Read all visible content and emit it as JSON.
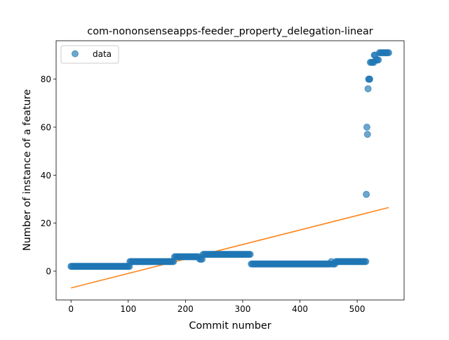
{
  "chart_data": {
    "type": "scatter",
    "title": "com-nononsenseapps-feeder_property_delegation-linear",
    "xlabel": "Commit number",
    "ylabel": "Number of instance of a feature",
    "xlim": [
      -26,
      582
    ],
    "ylim": [
      -12,
      96
    ],
    "xticks": [
      0,
      100,
      200,
      300,
      400,
      500
    ],
    "yticks": [
      0,
      20,
      40,
      60,
      80
    ],
    "grid": false,
    "legend": {
      "position": "top-left",
      "entries": [
        "data"
      ]
    },
    "colors": {
      "points": "#1f77b4",
      "fit": "#ff7f0e"
    },
    "segments": [
      {
        "x_start": 0,
        "x_end": 102,
        "step": 2,
        "y": 2
      },
      {
        "x_start": 103,
        "x_end": 180,
        "step": 2,
        "y": 4
      },
      {
        "x_start": 181,
        "x_end": 224,
        "step": 2,
        "y": 6
      },
      {
        "x_start": 225,
        "x_end": 230,
        "step": 2,
        "y": 5
      },
      {
        "x_start": 231,
        "x_end": 314,
        "step": 2,
        "y": 7
      },
      {
        "x_start": 315,
        "x_end": 454,
        "step": 2,
        "y": 3
      },
      {
        "x_start": 455,
        "x_end": 456,
        "step": 2,
        "y": 4
      },
      {
        "x_start": 457,
        "x_end": 462,
        "step": 2,
        "y": 3
      },
      {
        "x_start": 463,
        "x_end": 515,
        "step": 2,
        "y": 4
      }
    ],
    "points": [
      {
        "x": 516,
        "y": 32
      },
      {
        "x": 517,
        "y": 60
      },
      {
        "x": 518,
        "y": 57
      },
      {
        "x": 519,
        "y": 76
      },
      {
        "x": 520,
        "y": 80
      },
      {
        "x": 521,
        "y": 80
      },
      {
        "x": 522,
        "y": 80
      },
      {
        "x": 523,
        "y": 87
      },
      {
        "x": 525,
        "y": 87
      },
      {
        "x": 527,
        "y": 87
      },
      {
        "x": 529,
        "y": 87
      },
      {
        "x": 530,
        "y": 90
      },
      {
        "x": 531,
        "y": 90
      },
      {
        "x": 533,
        "y": 88
      },
      {
        "x": 535,
        "y": 88
      },
      {
        "x": 537,
        "y": 88
      },
      {
        "x": 539,
        "y": 91
      },
      {
        "x": 541,
        "y": 91
      },
      {
        "x": 543,
        "y": 91
      },
      {
        "x": 545,
        "y": 91
      },
      {
        "x": 547,
        "y": 91
      },
      {
        "x": 549,
        "y": 91
      },
      {
        "x": 551,
        "y": 91
      },
      {
        "x": 553,
        "y": 91
      },
      {
        "x": 555,
        "y": 91
      }
    ],
    "fit_line": {
      "x": [
        0,
        555
      ],
      "y": [
        -7,
        26.5
      ]
    }
  }
}
